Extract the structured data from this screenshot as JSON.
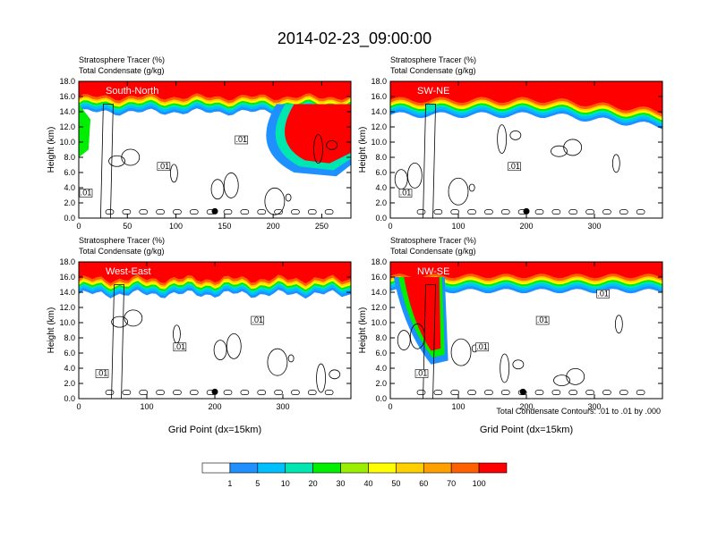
{
  "figure": {
    "title": "2014-02-23_09:00:00",
    "footnote": "Total Condensate Contours: .01 to .01 by .000"
  },
  "chart_data": [
    {
      "type": "heatmap",
      "panel_title": "South-North",
      "header_line1": "Stratosphere Tracer   (%)",
      "header_line2": "Total Condensate   (g/kg)",
      "ylabel": "Height (km)",
      "xlabel": "",
      "xlim": [
        0,
        280
      ],
      "ylim": [
        0,
        18
      ],
      "xticks": [
        0,
        50,
        100,
        150,
        200,
        250
      ],
      "yticks": [
        "0.0",
        "2.0",
        "4.0",
        "6.0",
        "8.0",
        "10.0",
        "12.0",
        "14.0",
        "16.0",
        "18.0"
      ],
      "contour_labels": [
        ".01",
        ".01",
        ".01"
      ],
      "marker_x": 140
    },
    {
      "type": "heatmap",
      "panel_title": "SW-NE",
      "header_line1": "Stratosphere Tracer   (%)",
      "header_line2": "Total Condensate   (g/kg)",
      "ylabel": "Height (km)",
      "xlabel": "",
      "xlim": [
        0,
        400
      ],
      "ylim": [
        0,
        18
      ],
      "xticks": [
        0,
        100,
        200,
        300
      ],
      "yticks": [
        "0.0",
        "2.0",
        "4.0",
        "6.0",
        "8.0",
        "10.0",
        "12.0",
        "14.0",
        "16.0",
        "18.0"
      ],
      "contour_labels": [
        ".01",
        ".01"
      ],
      "marker_x": 200
    },
    {
      "type": "heatmap",
      "panel_title": "West-East",
      "header_line1": "Stratosphere Tracer   (%)",
      "header_line2": "Total Condensate   (g/kg)",
      "ylabel": "Height (km)",
      "xlabel": "Grid Point (dx=15km)",
      "xlim": [
        0,
        400
      ],
      "ylim": [
        0,
        18
      ],
      "xticks": [
        0,
        100,
        200,
        300
      ],
      "yticks": [
        "0.0",
        "2.0",
        "4.0",
        "6.0",
        "8.0",
        "10.0",
        "12.0",
        "14.0",
        "16.0",
        "18.0"
      ],
      "contour_labels": [
        ".01",
        ".01",
        ".01"
      ],
      "marker_x": 200
    },
    {
      "type": "heatmap",
      "panel_title": "NW-SE",
      "header_line1": "Stratosphere Tracer   (%)",
      "header_line2": "Total Condensate   (g/kg)",
      "ylabel": "Height (km)",
      "xlabel": "Grid Point (dx=15km)",
      "xlim": [
        0,
        400
      ],
      "ylim": [
        0,
        18
      ],
      "xticks": [
        0,
        100,
        200,
        300
      ],
      "yticks": [
        "0.0",
        "2.0",
        "4.0",
        "6.0",
        "8.0",
        "10.0",
        "12.0",
        "14.0",
        "16.0",
        "18.0"
      ],
      "contour_labels": [
        ".01",
        ".01",
        ".01",
        ".01"
      ],
      "marker_x": 195
    }
  ],
  "colorbar": {
    "levels": [
      "1",
      "5",
      "10",
      "20",
      "30",
      "40",
      "50",
      "60",
      "70",
      "100"
    ],
    "colors": [
      "#ffffff",
      "#1e90ff",
      "#00bfff",
      "#00e6b0",
      "#00ee00",
      "#9aee00",
      "#ffff00",
      "#ffd000",
      "#ffa000",
      "#ff6000",
      "#ff0000"
    ]
  }
}
